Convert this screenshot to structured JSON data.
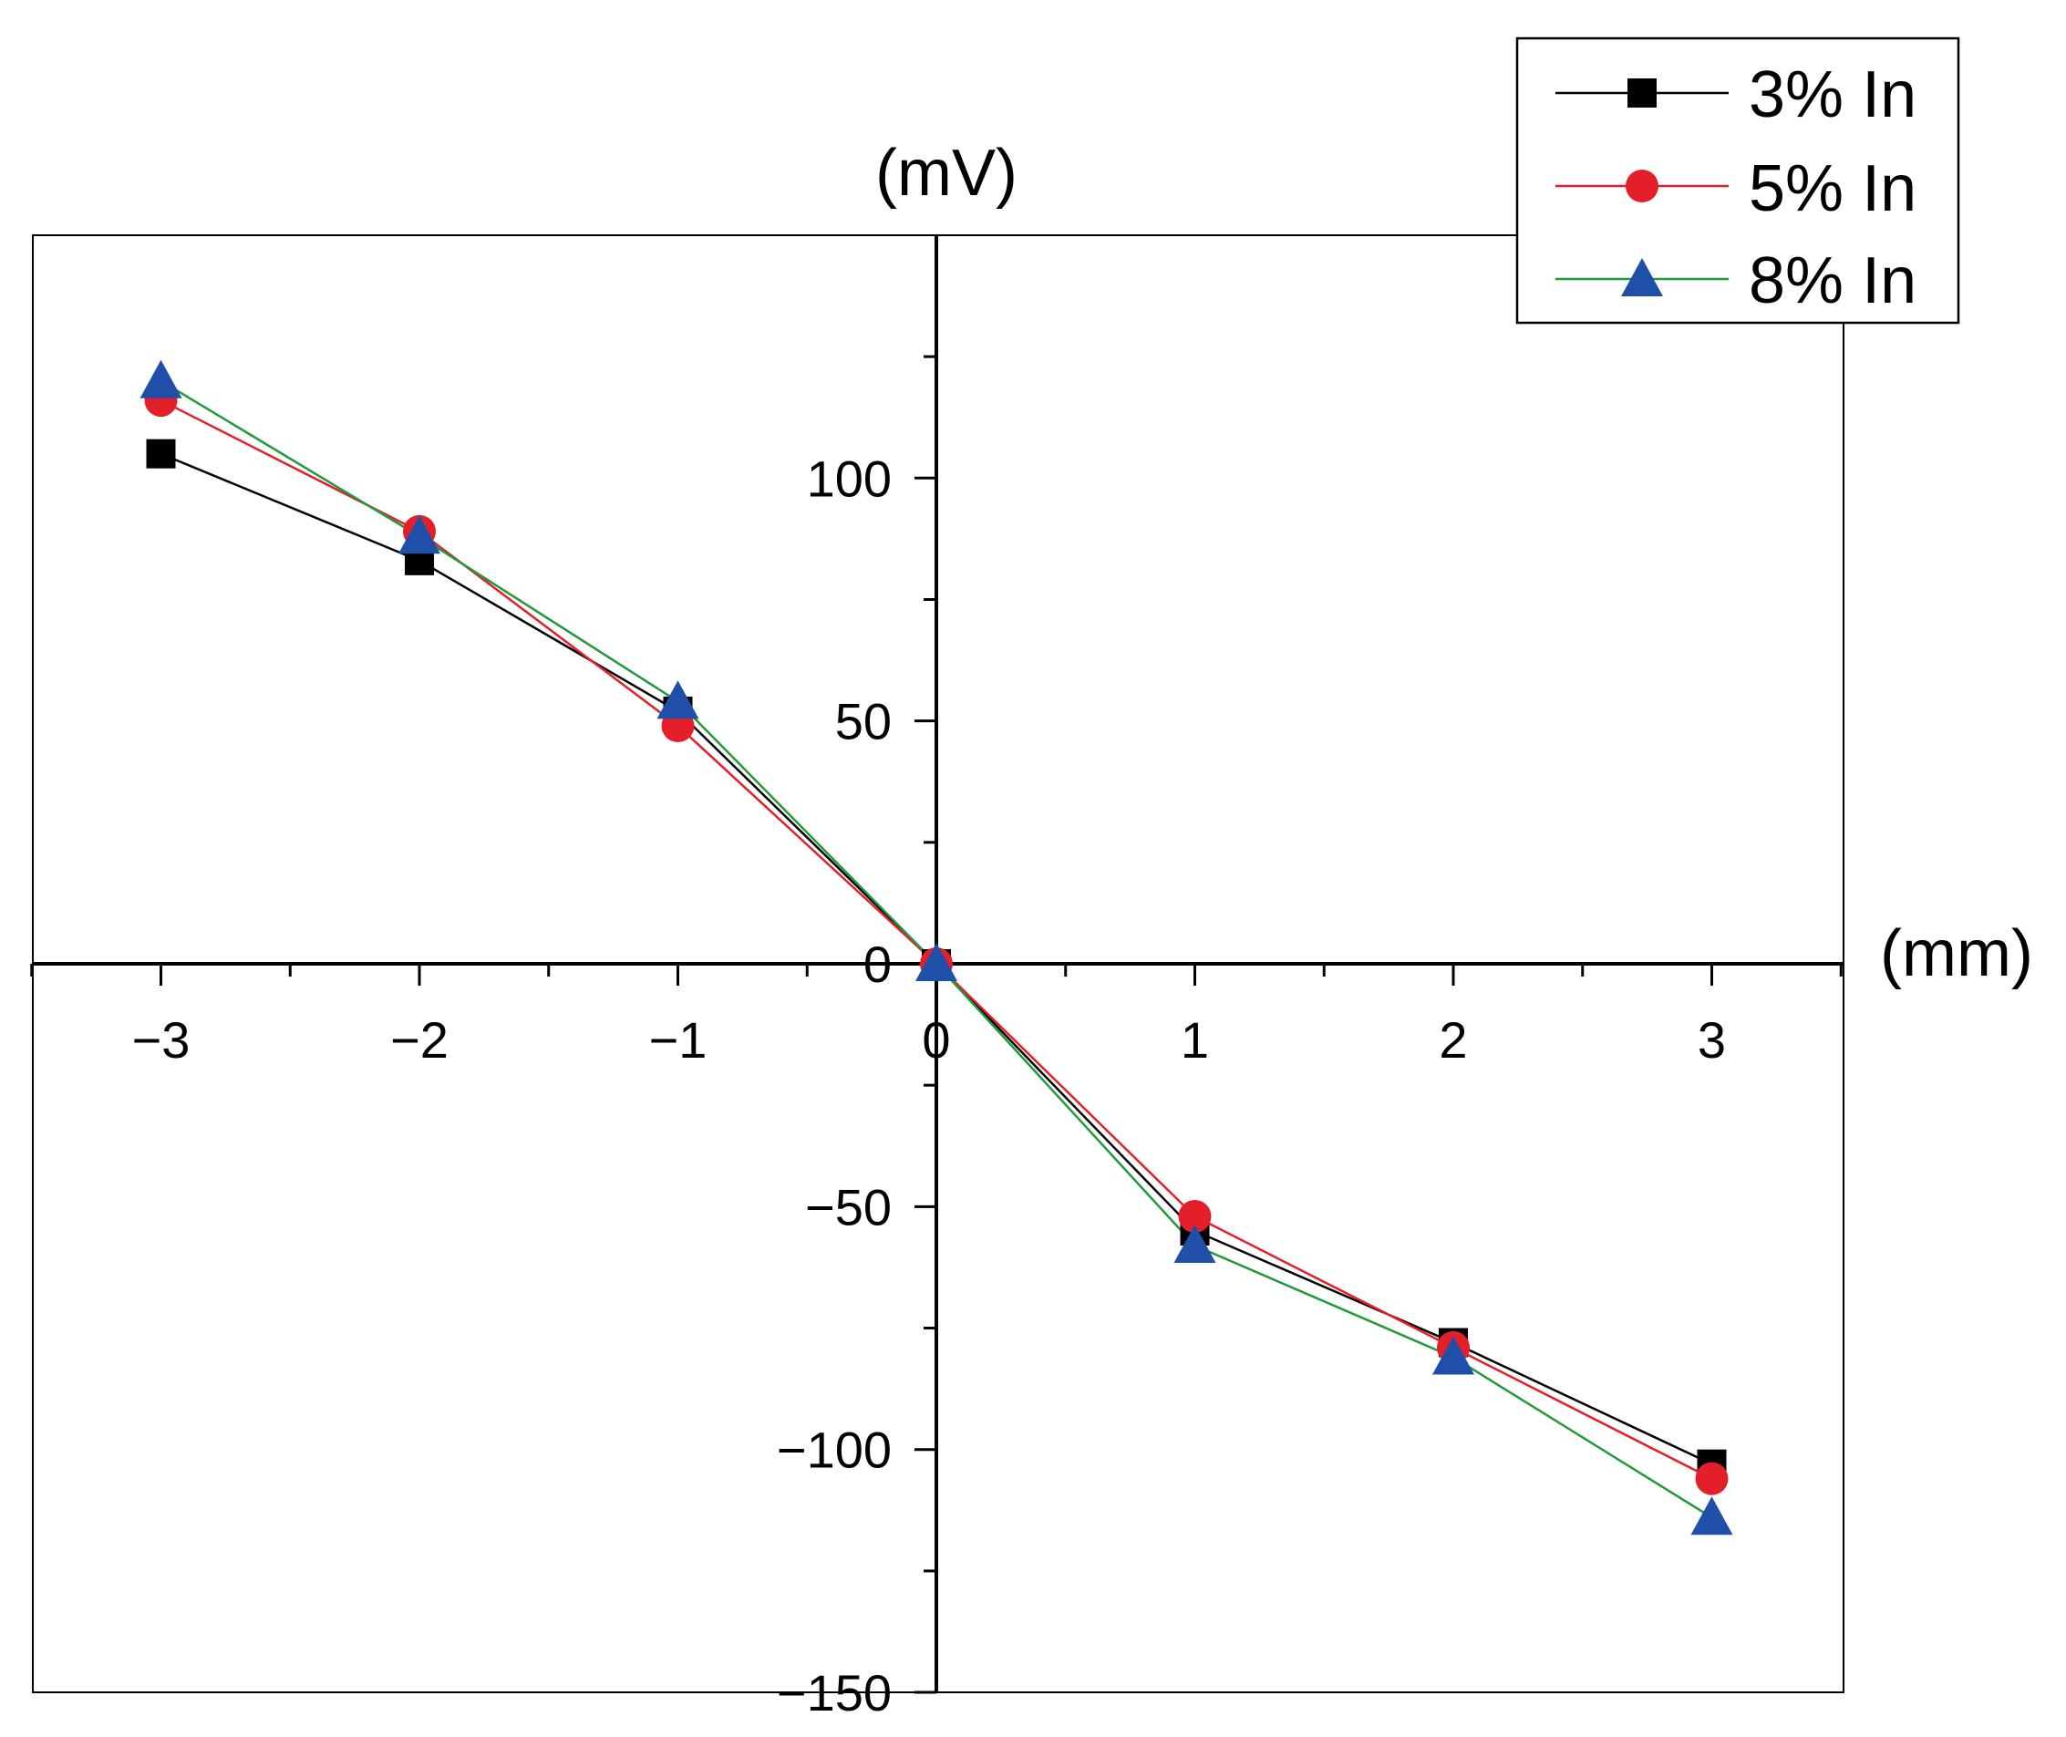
{
  "chart_data": {
    "type": "line",
    "title": "",
    "xlabel": "(mm)",
    "ylabel": "(mV)",
    "x": [
      -3,
      -2,
      -1,
      0,
      1,
      2,
      3
    ],
    "xlim": [
      -3.5,
      3.5
    ],
    "ylim": [
      -150,
      150
    ],
    "xticks": [
      -3,
      -2,
      -1,
      0,
      1,
      2,
      3
    ],
    "xtick_labels": [
      "−3",
      "−2",
      "−1",
      "0",
      "1",
      "2",
      "3"
    ],
    "yticks": [
      -150,
      -100,
      -50,
      0,
      50,
      100
    ],
    "ytick_labels": [
      "−150",
      "−100",
      "−50",
      "0",
      "50",
      "100"
    ],
    "grid": false,
    "legend_position": "top-right",
    "series": [
      {
        "name": "3% In",
        "marker": "square",
        "color": "#000000",
        "line_color": "#000000",
        "values": [
          105,
          83,
          52,
          0,
          -55,
          -78,
          -103
        ]
      },
      {
        "name": "5% In",
        "marker": "circle",
        "color": "#e3202a",
        "line_color": "#e3202a",
        "values": [
          116,
          89,
          49,
          0,
          -52,
          -79,
          -106
        ]
      },
      {
        "name": "8% In",
        "marker": "triangle",
        "color": "#1f4fa8",
        "line_color": "#1f9a3a",
        "values": [
          120,
          88,
          54,
          0,
          -58,
          -81,
          -114
        ]
      }
    ]
  }
}
